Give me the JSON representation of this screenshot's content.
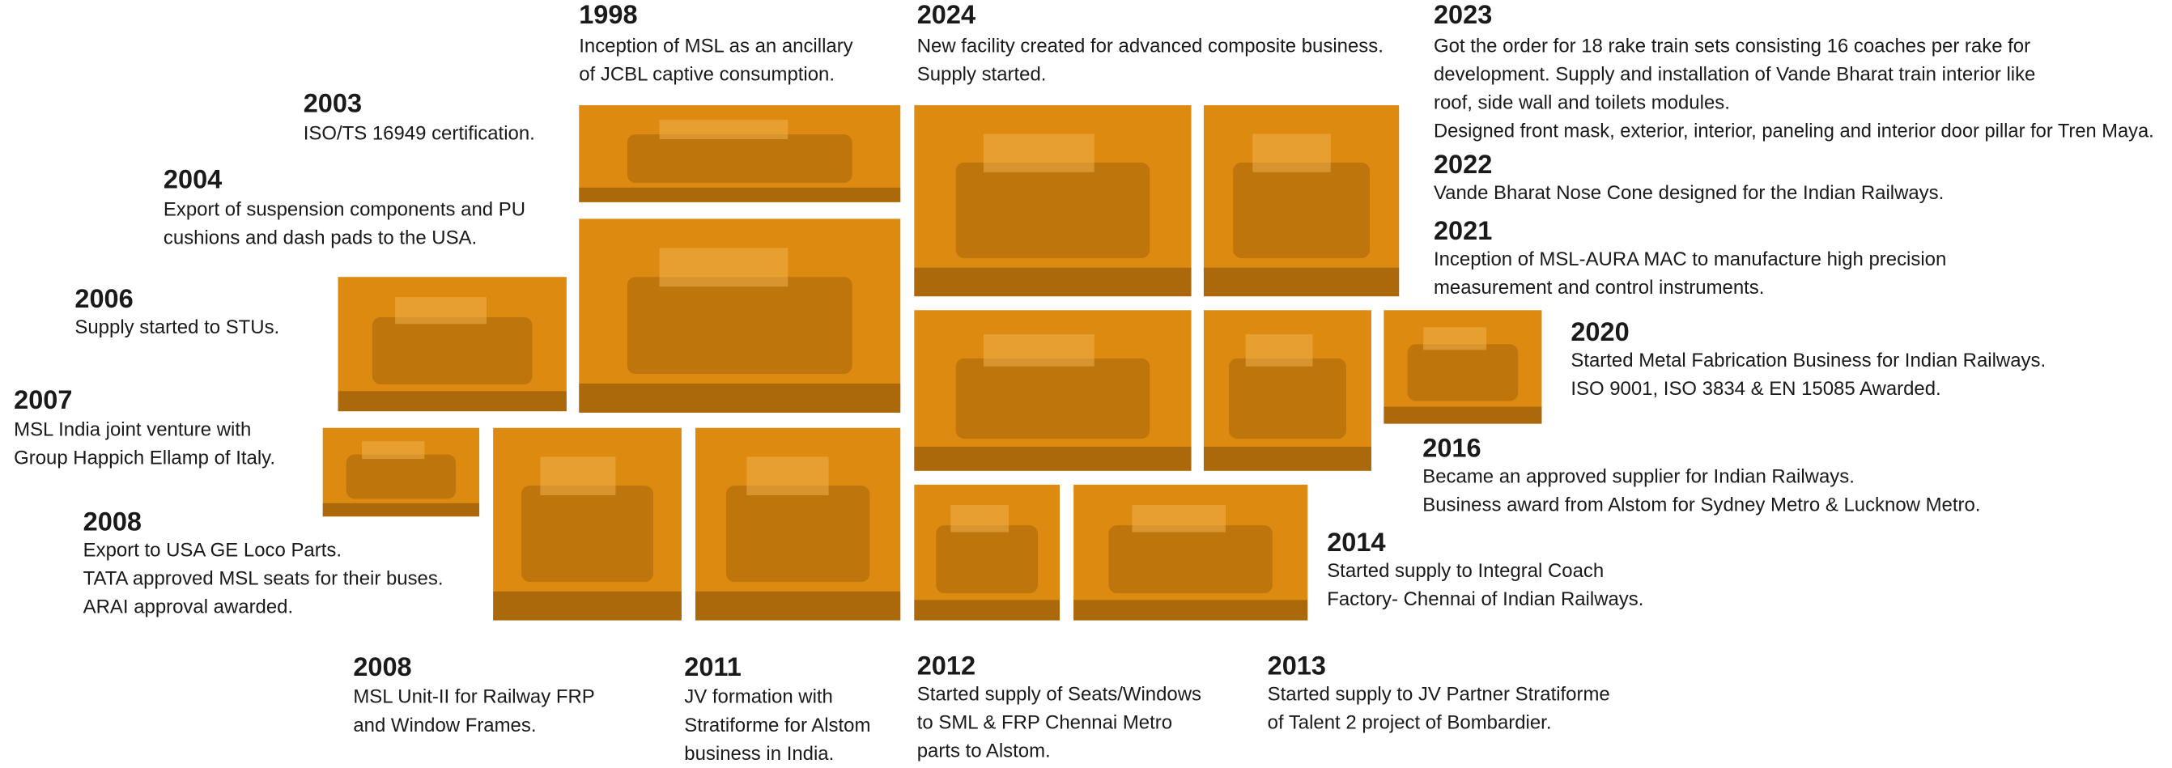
{
  "milestones": [
    {
      "year": "1998",
      "lines": [
        "Inception of MSL as an ancillary",
        "of JCBL captive consumption."
      ]
    },
    {
      "year": "2024",
      "lines": [
        "New facility created for advanced composite business.",
        "Supply started."
      ]
    },
    {
      "year": "2023",
      "lines": [
        "Got the order for 18 rake train sets consisting 16 coaches per rake for",
        "development. Supply and installation of Vande Bharat train interior like",
        "roof, side wall and toilets modules.",
        "Designed front mask, exterior, interior, paneling and interior door pillar for Tren Maya."
      ]
    },
    {
      "year": "2022",
      "lines": [
        "Vande Bharat Nose Cone designed for the Indian Railways."
      ]
    },
    {
      "year": "2021",
      "lines": [
        "Inception of MSL-AURA MAC to manufacture high precision",
        "measurement and control instruments."
      ]
    },
    {
      "year": "2020",
      "lines": [
        "Started Metal Fabrication Business for Indian Railways.",
        "ISO 9001, ISO 3834 & EN 15085 Awarded."
      ]
    },
    {
      "year": "2016",
      "lines": [
        "Became an approved supplier for Indian Railways.",
        "Business award from Alstom for Sydney Metro & Lucknow Metro."
      ]
    },
    {
      "year": "2014",
      "lines": [
        "Started supply to Integral Coach",
        "Factory- Chennai of Indian Railways."
      ]
    },
    {
      "year": "2003",
      "lines": [
        "ISO/TS 16949 certification."
      ]
    },
    {
      "year": "2004",
      "lines": [
        "Export of suspension components and PU",
        "cushions and dash pads to the USA."
      ]
    },
    {
      "year": "2006",
      "lines": [
        "Supply started to STUs."
      ]
    },
    {
      "year": "2007",
      "lines": [
        "MSL India joint venture with",
        "Group Happich Ellamp of Italy."
      ]
    },
    {
      "year": "2008",
      "lines": [
        "Export to USA GE Loco Parts.",
        "TATA approved MSL seats for their buses.",
        "ARAI approval awarded."
      ]
    },
    {
      "year": "2008",
      "lines": [
        "MSL Unit-II for Railway FRP",
        "and Window Frames."
      ]
    },
    {
      "year": "2011",
      "lines": [
        "JV formation with",
        "Stratiforme for Alstom",
        "business in India."
      ]
    },
    {
      "year": "2012",
      "lines": [
        "Started supply of Seats/Windows",
        "to SML & FRP Chennai Metro",
        "parts to Alstom."
      ]
    },
    {
      "year": "2013",
      "lines": [
        "Started supply to JV Partner Stratiforme",
        "of Talent 2 project of Bombardier."
      ]
    }
  ]
}
